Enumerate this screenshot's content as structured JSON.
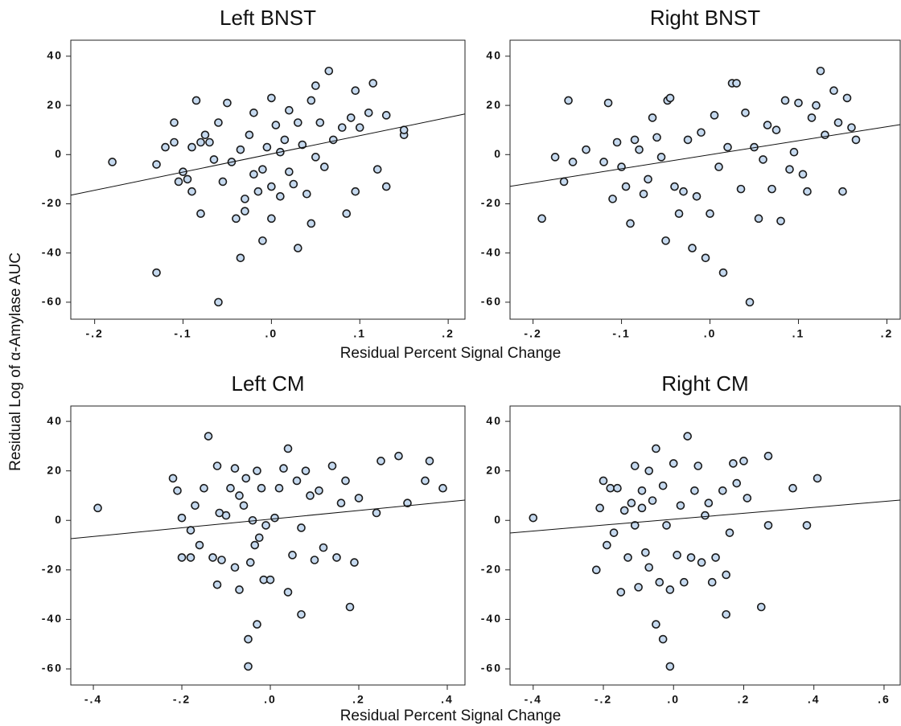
{
  "ylabel": "Residual Log of α-Amylase AUC",
  "chart_data": [
    {
      "type": "scatter",
      "title": "Left BNST",
      "xlabel": "Residual Percent Signal Change",
      "xlim": [
        -0.227,
        0.219
      ],
      "ylim": [
        -66.9,
        46.5
      ],
      "xticks": [
        {
          "value": -0.2,
          "label": "-.2"
        },
        {
          "value": -0.1,
          "label": "-.1"
        },
        {
          "value": 0,
          "label": ".0"
        },
        {
          "value": 0.1,
          "label": ".1"
        },
        {
          "value": 0.2,
          "label": ".2"
        }
      ],
      "yticks": [
        -60,
        -40,
        -20,
        0,
        20,
        40
      ],
      "color": "#c5d9ef",
      "x": [
        -0.18,
        -0.13,
        -0.13,
        -0.12,
        -0.11,
        -0.11,
        -0.105,
        -0.1,
        -0.095,
        -0.09,
        -0.09,
        -0.085,
        -0.08,
        -0.08,
        -0.075,
        -0.07,
        -0.065,
        -0.06,
        -0.06,
        -0.055,
        -0.05,
        -0.045,
        -0.04,
        -0.035,
        -0.035,
        -0.03,
        -0.03,
        -0.025,
        -0.02,
        -0.02,
        -0.015,
        -0.01,
        -0.01,
        -0.005,
        0,
        0,
        0,
        0.005,
        0.01,
        0.01,
        0.015,
        0.02,
        0.02,
        0.025,
        0.03,
        0.03,
        0.035,
        0.04,
        0.045,
        0.045,
        0.05,
        0.05,
        0.055,
        0.06,
        0.065,
        0.07,
        0.08,
        0.085,
        0.09,
        0.095,
        0.095,
        0.1,
        0.11,
        0.115,
        0.12,
        0.13,
        0.13,
        0.15,
        0.15
      ],
      "y": [
        -3,
        -48,
        -4,
        3,
        13,
        5,
        -11,
        -7,
        -10,
        3,
        -15,
        22,
        5,
        -24,
        8,
        5,
        -2,
        -60,
        13,
        -11,
        21,
        -3,
        -26,
        -42,
        2,
        -23,
        -18,
        8,
        17,
        -8,
        -15,
        -35,
        -6,
        3,
        23,
        -26,
        -13,
        12,
        -17,
        1,
        6,
        -7,
        18,
        -12,
        -38,
        13,
        4,
        -16,
        22,
        -28,
        28,
        -1,
        13,
        -5,
        34,
        6,
        11,
        -24,
        15,
        -15,
        26,
        11,
        17,
        29,
        -6,
        -13,
        16,
        8,
        10
      ],
      "fit_line": {
        "x": [
          -0.227,
          0.219
        ],
        "y": [
          -16.5,
          16.5
        ]
      }
    },
    {
      "type": "scatter",
      "title": "Right BNST",
      "xlim": [
        -0.226,
        0.215
      ],
      "ylim": [
        -66.9,
        46.5
      ],
      "xticks": [
        {
          "value": -0.2,
          "label": "-.2"
        },
        {
          "value": -0.1,
          "label": "-.1"
        },
        {
          "value": 0,
          "label": ".0"
        },
        {
          "value": 0.1,
          "label": ".1"
        },
        {
          "value": 0.2,
          "label": ".2"
        }
      ],
      "yticks": [
        -60,
        -40,
        -20,
        0,
        20,
        40
      ],
      "color": "#c5d9ef",
      "x": [
        -0.19,
        -0.175,
        -0.165,
        -0.16,
        -0.155,
        -0.14,
        -0.12,
        -0.115,
        -0.11,
        -0.105,
        -0.1,
        -0.095,
        -0.09,
        -0.085,
        -0.08,
        -0.075,
        -0.07,
        -0.065,
        -0.06,
        -0.055,
        -0.05,
        -0.048,
        -0.045,
        -0.04,
        -0.035,
        -0.03,
        -0.025,
        -0.02,
        -0.015,
        -0.01,
        -0.005,
        0,
        0.005,
        0.01,
        0.015,
        0.02,
        0.025,
        0.03,
        0.035,
        0.04,
        0.045,
        0.05,
        0.055,
        0.06,
        0.065,
        0.07,
        0.075,
        0.08,
        0.085,
        0.09,
        0.095,
        0.1,
        0.105,
        0.11,
        0.115,
        0.12,
        0.125,
        0.13,
        0.14,
        0.145,
        0.15,
        0.155,
        0.16,
        0.165
      ],
      "y": [
        -26,
        -1,
        -11,
        22,
        -3,
        2,
        -3,
        21,
        -18,
        5,
        -5,
        -13,
        -28,
        6,
        2,
        -16,
        -10,
        15,
        7,
        -1,
        -35,
        22,
        23,
        -13,
        -24,
        -15,
        6,
        -38,
        -17,
        9,
        -42,
        -24,
        16,
        -5,
        -48,
        3,
        29,
        29,
        -14,
        17,
        -60,
        3,
        -26,
        -2,
        12,
        -14,
        10,
        -27,
        22,
        -6,
        1,
        21,
        -8,
        -15,
        15,
        20,
        34,
        8,
        26,
        13,
        -15,
        23,
        11,
        6
      ],
      "fit_line": {
        "x": [
          -0.226,
          0.215
        ],
        "y": [
          -12.9,
          12.2
        ]
      }
    },
    {
      "type": "scatter",
      "title": "Left CM",
      "xlabel": "Residual Percent Signal Change",
      "xlim": [
        -0.451,
        0.44
      ],
      "ylim": [
        -66.5,
        46.2
      ],
      "xticks": [
        {
          "value": -0.4,
          "label": "-.4"
        },
        {
          "value": -0.2,
          "label": "-.2"
        },
        {
          "value": 0,
          "label": ".0"
        },
        {
          "value": 0.2,
          "label": ".2"
        },
        {
          "value": 0.4,
          "label": ".4"
        }
      ],
      "yticks": [
        -60,
        -40,
        -20,
        0,
        20,
        40
      ],
      "color": "#c5d9ef",
      "x": [
        -0.39,
        -0.22,
        -0.21,
        -0.2,
        -0.2,
        -0.18,
        -0.18,
        -0.17,
        -0.16,
        -0.15,
        -0.14,
        -0.13,
        -0.12,
        -0.12,
        -0.115,
        -0.11,
        -0.1,
        -0.09,
        -0.08,
        -0.08,
        -0.07,
        -0.07,
        -0.06,
        -0.055,
        -0.05,
        -0.05,
        -0.045,
        -0.04,
        -0.035,
        -0.03,
        -0.03,
        -0.025,
        -0.02,
        -0.015,
        -0.01,
        0,
        0.01,
        0.02,
        0.03,
        0.04,
        0.04,
        0.05,
        0.06,
        0.07,
        0.07,
        0.08,
        0.09,
        0.1,
        0.11,
        0.12,
        0.14,
        0.15,
        0.16,
        0.17,
        0.18,
        0.19,
        0.2,
        0.24,
        0.25,
        0.29,
        0.31,
        0.35,
        0.36,
        0.39
      ],
      "y": [
        5,
        17,
        12,
        1,
        -15,
        -4,
        -15,
        6,
        -10,
        13,
        34,
        -15,
        22,
        -26,
        3,
        -16,
        2,
        13,
        21,
        -19,
        10,
        -28,
        6,
        17,
        -59,
        -48,
        -17,
        0,
        -10,
        -42,
        20,
        -7,
        13,
        -24,
        -2,
        -24,
        1,
        13,
        21,
        -29,
        29,
        -14,
        16,
        -38,
        -3,
        20,
        10,
        -16,
        12,
        -11,
        22,
        -15,
        7,
        16,
        -35,
        -17,
        9,
        3,
        24,
        26,
        7,
        16,
        24,
        13
      ],
      "fit_line": {
        "x": [
          -0.451,
          0.44
        ],
        "y": [
          -7.4,
          8.2
        ]
      }
    },
    {
      "type": "scatter",
      "title": "Right CM",
      "xlim": [
        -0.466,
        0.646
      ],
      "ylim": [
        -66.5,
        46.2
      ],
      "xticks": [
        {
          "value": -0.4,
          "label": "-.4"
        },
        {
          "value": -0.2,
          "label": "-.2"
        },
        {
          "value": 0,
          "label": ".0"
        },
        {
          "value": 0.2,
          "label": ".2"
        },
        {
          "value": 0.4,
          "label": ".4"
        },
        {
          "value": 0.6,
          "label": ".6"
        }
      ],
      "yticks": [
        -60,
        -40,
        -20,
        0,
        20,
        40
      ],
      "color": "#c5d9ef",
      "x": [
        -0.4,
        -0.22,
        -0.21,
        -0.2,
        -0.19,
        -0.18,
        -0.17,
        -0.16,
        -0.15,
        -0.14,
        -0.13,
        -0.12,
        -0.11,
        -0.11,
        -0.1,
        -0.09,
        -0.09,
        -0.08,
        -0.07,
        -0.07,
        -0.06,
        -0.05,
        -0.05,
        -0.04,
        -0.03,
        -0.03,
        -0.02,
        -0.01,
        -0.01,
        0,
        0.01,
        0.02,
        0.03,
        0.04,
        0.05,
        0.06,
        0.07,
        0.08,
        0.09,
        0.1,
        0.11,
        0.12,
        0.14,
        0.15,
        0.15,
        0.16,
        0.17,
        0.18,
        0.2,
        0.21,
        0.25,
        0.27,
        0.27,
        0.34,
        0.38,
        0.41
      ],
      "y": [
        1,
        -20,
        5,
        16,
        -10,
        13,
        -5,
        13,
        -29,
        4,
        -15,
        7,
        22,
        -2,
        -27,
        12,
        5,
        -13,
        20,
        -19,
        8,
        -42,
        29,
        -25,
        -48,
        14,
        -2,
        -59,
        -28,
        23,
        -14,
        6,
        -25,
        34,
        -15,
        12,
        22,
        -17,
        2,
        7,
        -25,
        -15,
        12,
        -38,
        -22,
        -5,
        23,
        15,
        24,
        9,
        -35,
        26,
        -2,
        13,
        -2,
        17
      ],
      "fit_line": {
        "x": [
          -0.466,
          0.646
        ],
        "y": [
          -5.1,
          8.2
        ]
      }
    }
  ]
}
